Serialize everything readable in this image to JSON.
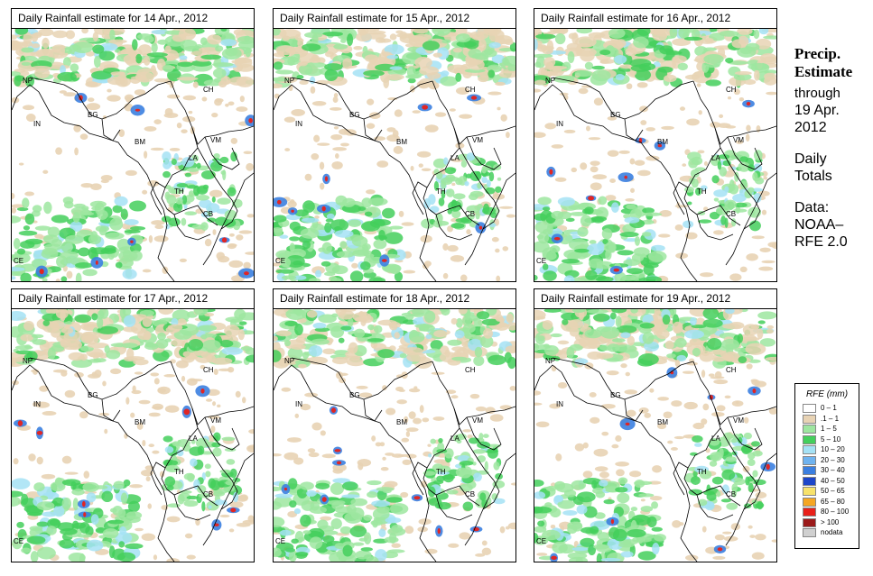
{
  "panels": [
    {
      "title": "Daily Rainfall estimate for  14 Apr., 2012"
    },
    {
      "title": "Daily Rainfall estimate for  15 Apr., 2012"
    },
    {
      "title": "Daily Rainfall estimate for  16 Apr., 2012"
    },
    {
      "title": "Daily Rainfall estimate for  17 Apr., 2012"
    },
    {
      "title": "Daily Rainfall estimate for  18 Apr., 2012"
    },
    {
      "title": "Daily Rainfall estimate for  19 Apr., 2012"
    }
  ],
  "country_labels": {
    "np": "NP",
    "ch": "CH",
    "in": "IN",
    "bg": "BG",
    "bm": "BM",
    "vm": "VM",
    "la": "LA",
    "th": "TH",
    "cb": "CB",
    "ce": "CE"
  },
  "side": {
    "heading_line1": "Precip.",
    "heading_line2": "Estimate",
    "through": "through",
    "date_line1": "19 Apr.",
    "date_line2": "2012",
    "totals_line1": "Daily",
    "totals_line2": "Totals",
    "data_line1": "Data:",
    "data_line2": "NOAA–",
    "data_line3": "RFE 2.0"
  },
  "legend": {
    "title": "RFE (mm)",
    "items": [
      {
        "label": "0 – 1",
        "color": "#ffffff"
      },
      {
        "label": ".1 – 1",
        "color": "#e8d3b4"
      },
      {
        "label": "1 – 5",
        "color": "#9ee6a0"
      },
      {
        "label": "5 – 10",
        "color": "#44cf5c"
      },
      {
        "label": "10 – 20",
        "color": "#a5e2f5"
      },
      {
        "label": "20 – 30",
        "color": "#6fb3ef"
      },
      {
        "label": "30 – 40",
        "color": "#3b7fe0"
      },
      {
        "label": "40 – 50",
        "color": "#1d46c9"
      },
      {
        "label": "50 – 65",
        "color": "#f7e26b"
      },
      {
        "label": "65 – 80",
        "color": "#f5a623"
      },
      {
        "label": "80 – 100",
        "color": "#e8201a"
      },
      {
        "label": "> 100",
        "color": "#9b1a1a"
      },
      {
        "label": "nodata",
        "color": "#d0d0d0"
      }
    ]
  }
}
